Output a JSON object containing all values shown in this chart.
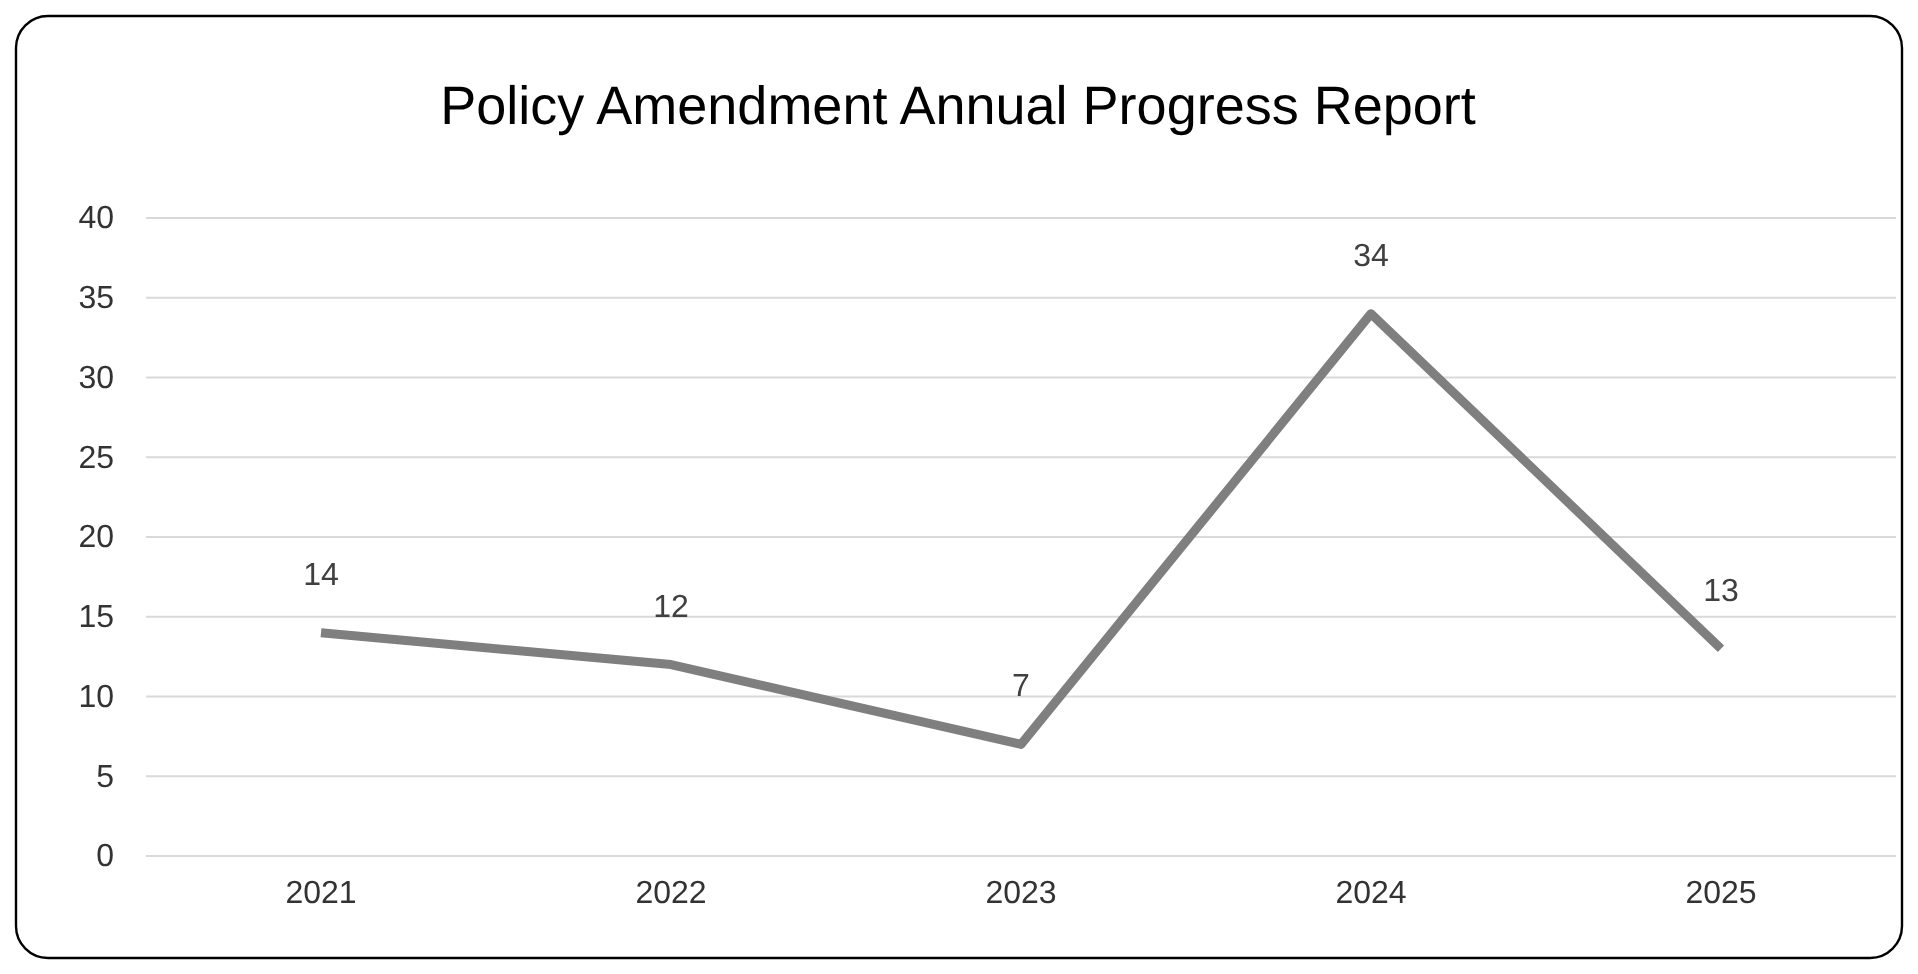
{
  "chart_data": {
    "type": "line",
    "title": "Policy Amendment Annual Progress Report",
    "categories": [
      "2021",
      "2022",
      "2023",
      "2024",
      "2025"
    ],
    "series": [
      {
        "color": "#7f7f7f",
        "values": [
          14,
          12,
          7,
          34,
          13
        ]
      }
    ],
    "ylim": [
      0,
      40
    ],
    "yticks": [
      0,
      5,
      10,
      15,
      20,
      25,
      30,
      35,
      40
    ],
    "grid": "y",
    "data_labels": true
  }
}
